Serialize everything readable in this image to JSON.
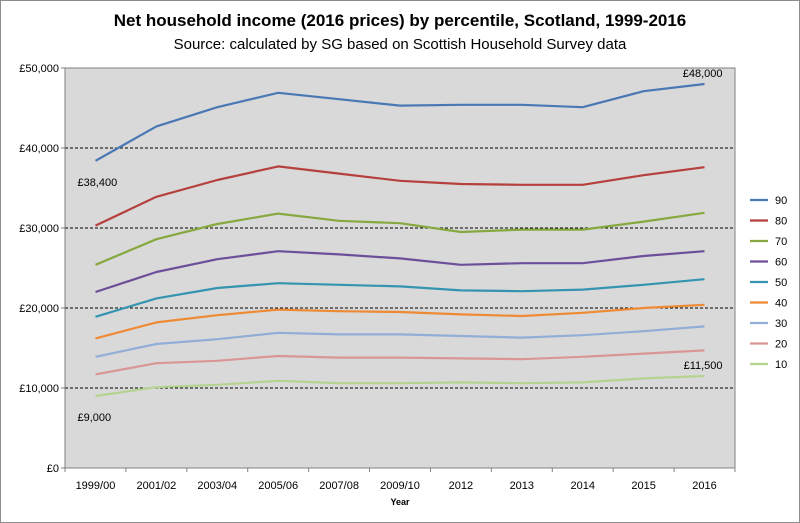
{
  "chart_data": {
    "type": "line",
    "title": "Net household income (2016 prices) by percentile, Scotland, 1999-2016",
    "subtitle": "Source: calculated by SG based on Scottish Household Survey data",
    "xlabel": "Year",
    "ylabel": "",
    "categories": [
      "1999/00",
      "2001/02",
      "2003/04",
      "2005/06",
      "2007/08",
      "2009/10",
      "2012",
      "2013",
      "2014",
      "2015",
      "2016"
    ],
    "ylim": [
      0,
      50000
    ],
    "yticks": [
      0,
      10000,
      20000,
      30000,
      40000,
      50000
    ],
    "ytick_labels": [
      "£0",
      "£10,000",
      "£20,000",
      "£30,000",
      "£40,000",
      "£50,000"
    ],
    "grid": "dashed horizontal gridlines at 10,000 intervals",
    "plot_background": "#d9d9d9",
    "legend_position": "right",
    "series": [
      {
        "name": "90",
        "color": "#4a78b5",
        "values": [
          38400,
          42700,
          45100,
          46900,
          46100,
          45300,
          45400,
          45400,
          45100,
          47100,
          48000
        ]
      },
      {
        "name": "80",
        "color": "#b5403d",
        "values": [
          30300,
          33900,
          36000,
          37700,
          36800,
          35900,
          35500,
          35400,
          35400,
          36600,
          37600
        ]
      },
      {
        "name": "70",
        "color": "#86a83f",
        "values": [
          25400,
          28600,
          30500,
          31800,
          30900,
          30600,
          29500,
          29800,
          29800,
          30800,
          31900
        ]
      },
      {
        "name": "60",
        "color": "#6c4f9a",
        "values": [
          22000,
          24500,
          26100,
          27100,
          26700,
          26200,
          25400,
          25600,
          25600,
          26500,
          27100
        ]
      },
      {
        "name": "50",
        "color": "#3595b0",
        "values": [
          18900,
          21200,
          22500,
          23100,
          22900,
          22700,
          22200,
          22100,
          22300,
          22900,
          23600
        ]
      },
      {
        "name": "40",
        "color": "#ee8a34",
        "values": [
          16200,
          18200,
          19100,
          19800,
          19600,
          19500,
          19200,
          19000,
          19400,
          20000,
          20400
        ]
      },
      {
        "name": "30",
        "color": "#92aed6",
        "values": [
          13900,
          15500,
          16100,
          16900,
          16700,
          16700,
          16500,
          16300,
          16600,
          17100,
          17700
        ]
      },
      {
        "name": "20",
        "color": "#d99694",
        "values": [
          11700,
          13100,
          13400,
          14000,
          13800,
          13800,
          13700,
          13600,
          13900,
          14300,
          14700
        ]
      },
      {
        "name": "10",
        "color": "#b5d38e",
        "values": [
          9000,
          10100,
          10400,
          10900,
          10600,
          10600,
          10700,
          10600,
          10700,
          11200,
          11500
        ]
      }
    ],
    "annotations": [
      {
        "text": "£38,400",
        "series": "90",
        "index": 0,
        "placement": "below"
      },
      {
        "text": "£48,000",
        "series": "90",
        "index": 10,
        "placement": "above"
      },
      {
        "text": "£9,000",
        "series": "10",
        "index": 0,
        "placement": "below"
      },
      {
        "text": "£11,500",
        "series": "10",
        "index": 10,
        "placement": "above"
      }
    ]
  }
}
